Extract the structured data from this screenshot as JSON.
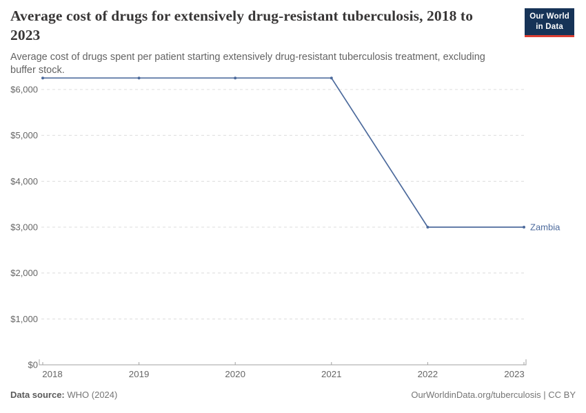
{
  "header": {
    "title": "Average cost of drugs for extensively drug-resistant tuberculosis, 2018 to 2023",
    "subtitle": "Average cost of drugs spent per patient starting extensively drug-resistant tuberculosis treatment, excluding buffer stock.",
    "logo": {
      "line1": "Our World",
      "line2": "in Data",
      "bg_color": "#163357",
      "accent_color": "#dc3e32"
    }
  },
  "chart_data": {
    "type": "line",
    "title": "Average cost of drugs for extensively drug-resistant tuberculosis, 2018 to 2023",
    "xlabel": "",
    "ylabel": "",
    "x": [
      "2018",
      "2019",
      "2020",
      "2021",
      "2022",
      "2023"
    ],
    "series": [
      {
        "name": "Zambia",
        "values": [
          6250,
          6250,
          6250,
          6250,
          3000,
          3000
        ],
        "color": "#4c6a9c"
      }
    ],
    "ylim": [
      0,
      6450
    ],
    "yticks": [
      {
        "value": 0,
        "label": "$0"
      },
      {
        "value": 1000,
        "label": "$1,000"
      },
      {
        "value": 2000,
        "label": "$2,000"
      },
      {
        "value": 3000,
        "label": "$3,000"
      },
      {
        "value": 4000,
        "label": "$4,000"
      },
      {
        "value": 5000,
        "label": "$5,000"
      },
      {
        "value": 6000,
        "label": "$6,000"
      }
    ],
    "grid": "horizontal-dashed",
    "grid_color": "#dcdcdc",
    "axis_color": "#a1a1a1",
    "tick_label_color": "#666666",
    "legend_position": "end-of-line-label"
  },
  "footer": {
    "source_label": "Data source:",
    "source_value": "WHO (2024)",
    "credit": "OurWorldinData.org/tuberculosis | CC BY"
  }
}
